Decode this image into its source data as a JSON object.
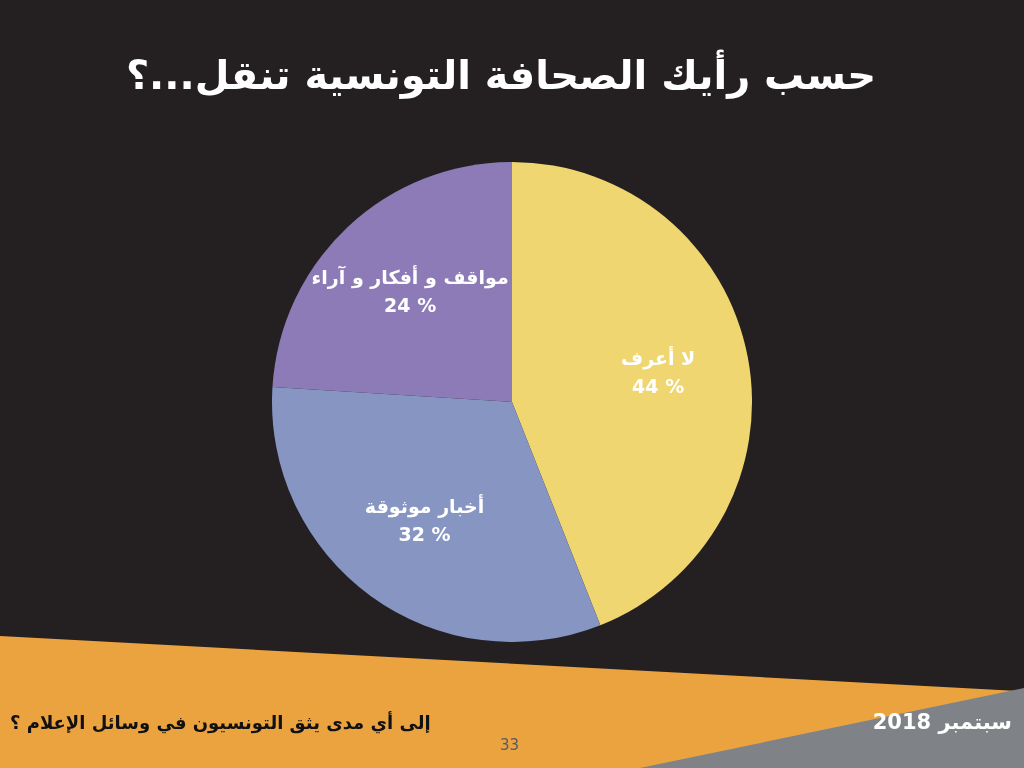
{
  "chart_data": {
    "type": "pie",
    "title": "حسب رأيك الصحافة التونسية تنقل...؟",
    "subtitle": "إلى أي مدى يثق التونسيون في وسائل الإعلام ؟",
    "categories": [
      "لا أعرف",
      "أخبار موثوقة",
      "مواقف و أفكار و آراء"
    ],
    "values": [
      44,
      32,
      24
    ],
    "value_labels": [
      "44 %",
      "32 %",
      "24 %"
    ],
    "colors": [
      "#f0d670",
      "#8795c3",
      "#8c7bb6"
    ],
    "annotations": [
      "سبتمبر 2018",
      "33"
    ],
    "legend": false
  }
}
